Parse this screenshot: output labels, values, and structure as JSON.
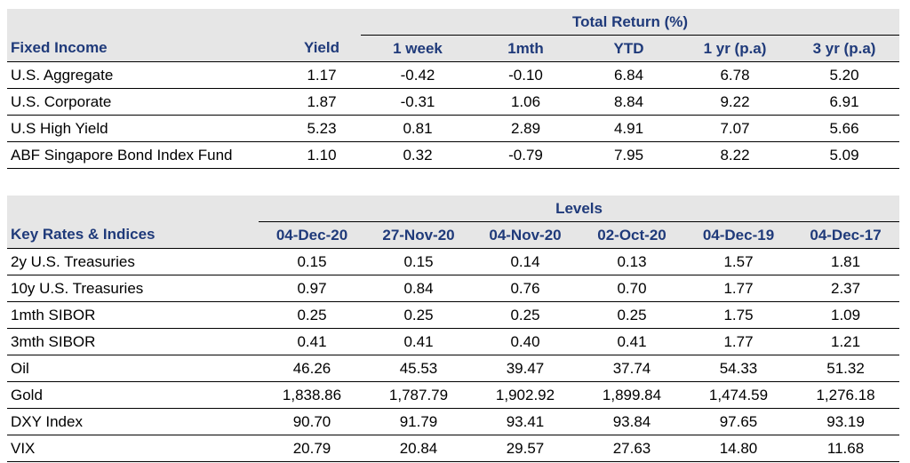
{
  "fixed_income": {
    "group_header": "Total Return (%)",
    "columns": [
      "Fixed Income",
      "Yield",
      "1 week",
      "1mth",
      "YTD",
      "1 yr (p.a)",
      "3 yr (p.a)"
    ],
    "rows": [
      [
        "U.S. Aggregate",
        "1.17",
        "-0.42",
        "-0.10",
        "6.84",
        "6.78",
        "5.20"
      ],
      [
        "U.S. Corporate",
        "1.87",
        "-0.31",
        "1.06",
        "8.84",
        "9.22",
        "6.91"
      ],
      [
        "U.S High Yield",
        "5.23",
        "0.81",
        "2.89",
        "4.91",
        "7.07",
        "5.66"
      ],
      [
        "ABF Singapore Bond Index Fund",
        "1.10",
        "0.32",
        "-0.79",
        "7.95",
        "8.22",
        "5.09"
      ]
    ]
  },
  "key_rates": {
    "group_header": "Levels",
    "columns": [
      "Key Rates & Indices",
      "04-Dec-20",
      "27-Nov-20",
      "04-Nov-20",
      "02-Oct-20",
      "04-Dec-19",
      "04-Dec-17"
    ],
    "rows": [
      [
        "2y U.S. Treasuries",
        "0.15",
        "0.15",
        "0.14",
        "0.13",
        "1.57",
        "1.81"
      ],
      [
        "10y U.S. Treasuries",
        "0.97",
        "0.84",
        "0.76",
        "0.70",
        "1.77",
        "2.37"
      ],
      [
        "1mth SIBOR",
        "0.25",
        "0.25",
        "0.25",
        "0.25",
        "1.75",
        "1.09"
      ],
      [
        "3mth SIBOR",
        "0.41",
        "0.41",
        "0.40",
        "0.41",
        "1.77",
        "1.21"
      ],
      [
        "Oil",
        "46.26",
        "45.53",
        "39.47",
        "37.74",
        "54.33",
        "51.32"
      ],
      [
        "Gold",
        "1,838.86",
        "1,787.79",
        "1,902.92",
        "1,899.84",
        "1,474.59",
        "1,276.18"
      ],
      [
        "DXY Index",
        "90.70",
        "91.79",
        "93.41",
        "93.84",
        "97.65",
        "93.19"
      ],
      [
        "VIX",
        "20.79",
        "20.84",
        "29.57",
        "27.63",
        "14.80",
        "11.68"
      ]
    ]
  }
}
